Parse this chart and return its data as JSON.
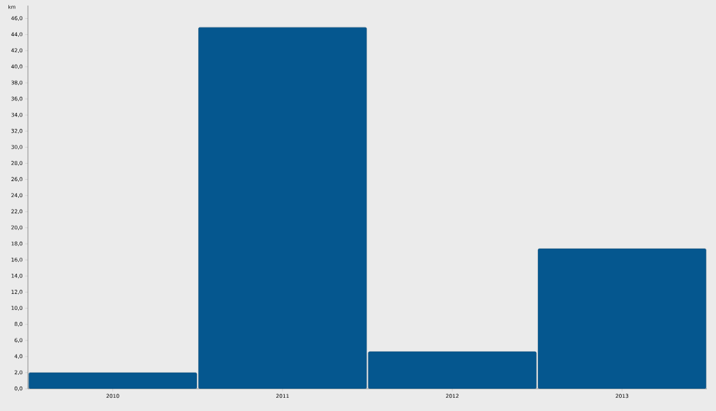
{
  "chart_data": {
    "type": "bar",
    "ylabel": "km",
    "categories": [
      "2010",
      "2011",
      "2012",
      "2013"
    ],
    "values": [
      2.0,
      44.9,
      4.6,
      17.4
    ],
    "color": "#05578f",
    "ylim": [
      0,
      47.6
    ],
    "yticks": [
      {
        "value": 0,
        "label": "0,0"
      },
      {
        "value": 2,
        "label": "2,0"
      },
      {
        "value": 4,
        "label": "4,0"
      },
      {
        "value": 6,
        "label": "6,0"
      },
      {
        "value": 8,
        "label": "8,0"
      },
      {
        "value": 10,
        "label": "10,0"
      },
      {
        "value": 12,
        "label": "12,0"
      },
      {
        "value": 14,
        "label": "14,0"
      },
      {
        "value": 16,
        "label": "16,0"
      },
      {
        "value": 18,
        "label": "18,0"
      },
      {
        "value": 20,
        "label": "20,0"
      },
      {
        "value": 22,
        "label": "22,0"
      },
      {
        "value": 24,
        "label": "24,0"
      },
      {
        "value": 26,
        "label": "26,0"
      },
      {
        "value": 28,
        "label": "28,0"
      },
      {
        "value": 30,
        "label": "30,0"
      },
      {
        "value": 32,
        "label": "32,0"
      },
      {
        "value": 34,
        "label": "34,0"
      },
      {
        "value": 36,
        "label": "36,0"
      },
      {
        "value": 38,
        "label": "38,0"
      },
      {
        "value": 40,
        "label": "40,0"
      },
      {
        "value": 42,
        "label": "42,0"
      },
      {
        "value": 44,
        "label": "44,0"
      },
      {
        "value": 46,
        "label": "46,0"
      }
    ],
    "grid": false
  }
}
